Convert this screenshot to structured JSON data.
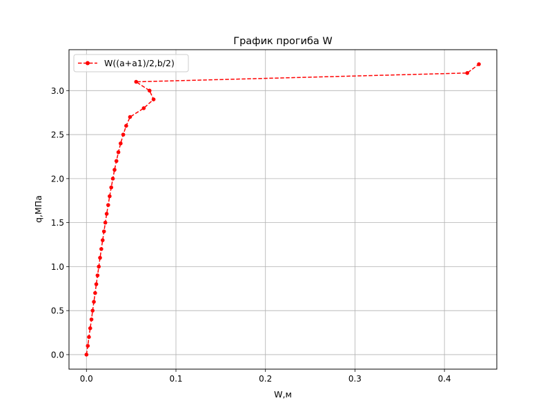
{
  "chart_data": {
    "type": "line",
    "title": "График прогиба W",
    "xlabel": "W,м",
    "ylabel": "q,МПа",
    "xlim": [
      -0.0195,
      0.4585
    ],
    "ylim": [
      -0.165,
      3.465
    ],
    "xticks": [
      0.0,
      0.1,
      0.2,
      0.3,
      0.4
    ],
    "xtick_labels": [
      "0.0",
      "0.1",
      "0.2",
      "0.3",
      "0.4"
    ],
    "yticks": [
      0.0,
      0.5,
      1.0,
      1.5,
      2.0,
      2.5,
      3.0
    ],
    "ytick_labels": [
      "0.0",
      "0.5",
      "1.0",
      "1.5",
      "2.0",
      "2.5",
      "3.0"
    ],
    "grid": true,
    "legend_position": "upper-left",
    "series": [
      {
        "name": "W((a+a1)/2,b/2)",
        "color": "#ff0000",
        "line_style": "dashed",
        "marker": "circle",
        "points": [
          [
            0.0,
            0.0
          ],
          [
            0.0015,
            0.1
          ],
          [
            0.0028,
            0.2
          ],
          [
            0.0042,
            0.3
          ],
          [
            0.0056,
            0.4
          ],
          [
            0.0069,
            0.5
          ],
          [
            0.0083,
            0.6
          ],
          [
            0.0097,
            0.7
          ],
          [
            0.011,
            0.8
          ],
          [
            0.0124,
            0.9
          ],
          [
            0.0138,
            1.0
          ],
          [
            0.0152,
            1.1
          ],
          [
            0.0166,
            1.2
          ],
          [
            0.0181,
            1.3
          ],
          [
            0.0196,
            1.4
          ],
          [
            0.0211,
            1.5
          ],
          [
            0.0226,
            1.6
          ],
          [
            0.0243,
            1.7
          ],
          [
            0.0259,
            1.8
          ],
          [
            0.0277,
            1.9
          ],
          [
            0.0295,
            2.0
          ],
          [
            0.0314,
            2.1
          ],
          [
            0.0335,
            2.2
          ],
          [
            0.0357,
            2.3
          ],
          [
            0.0382,
            2.4
          ],
          [
            0.0411,
            2.5
          ],
          [
            0.0444,
            2.6
          ],
          [
            0.0487,
            2.7
          ],
          [
            0.064,
            2.8
          ],
          [
            0.075,
            2.9
          ],
          [
            0.0705,
            3.0
          ],
          [
            0.0555,
            3.1
          ],
          [
            0.4255,
            3.2
          ],
          [
            0.4385,
            3.3
          ]
        ]
      }
    ]
  }
}
